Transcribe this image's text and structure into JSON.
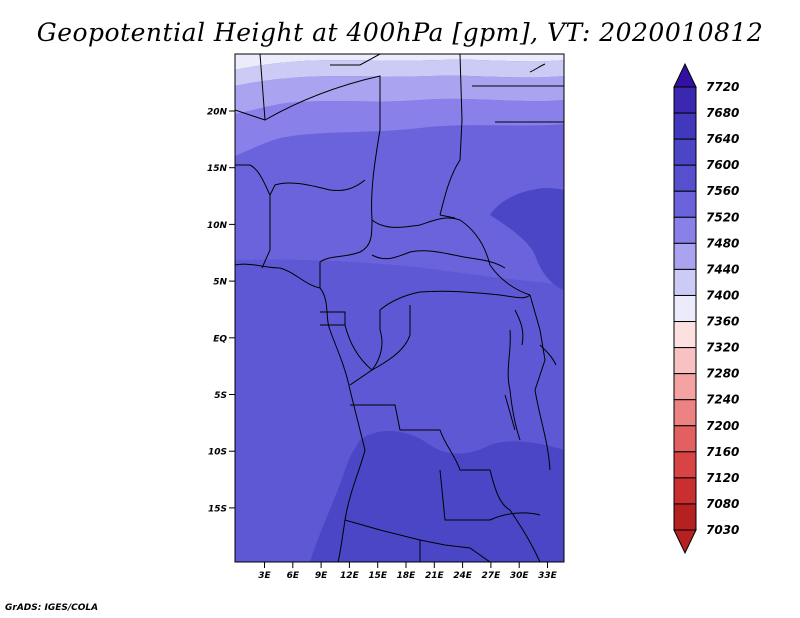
{
  "title": "Geopotential Height at 400hPa [gpm], VT: 2020010812",
  "credit": "GrADS: IGES/COLA",
  "map": {
    "lat_ticks": [
      "20N",
      "15N",
      "10N",
      "5N",
      "EQ",
      "5S",
      "10S",
      "15S"
    ],
    "lon_ticks": [
      "3E",
      "6E",
      "9E",
      "12E",
      "15E",
      "18E",
      "21E",
      "24E",
      "27E",
      "30E",
      "33E"
    ]
  },
  "colorbar": {
    "levels": [
      "7720",
      "7680",
      "7640",
      "7600",
      "7560",
      "7520",
      "7480",
      "7440",
      "7400",
      "7360",
      "7320",
      "7280",
      "7240",
      "7200",
      "7160",
      "7120",
      "7080",
      "7030"
    ],
    "colors": [
      "#3210a0",
      "#3a28b0",
      "#4238bb",
      "#4a46c6",
      "#5650cf",
      "#6a63dc",
      "#8a80ea",
      "#aaa4f0",
      "#cccbf6",
      "#ebebfb",
      "#fde0e0",
      "#f9c2c2",
      "#f4a2a2",
      "#ec8282",
      "#e36060",
      "#d84444",
      "#c92f2f",
      "#b52020"
    ]
  }
}
